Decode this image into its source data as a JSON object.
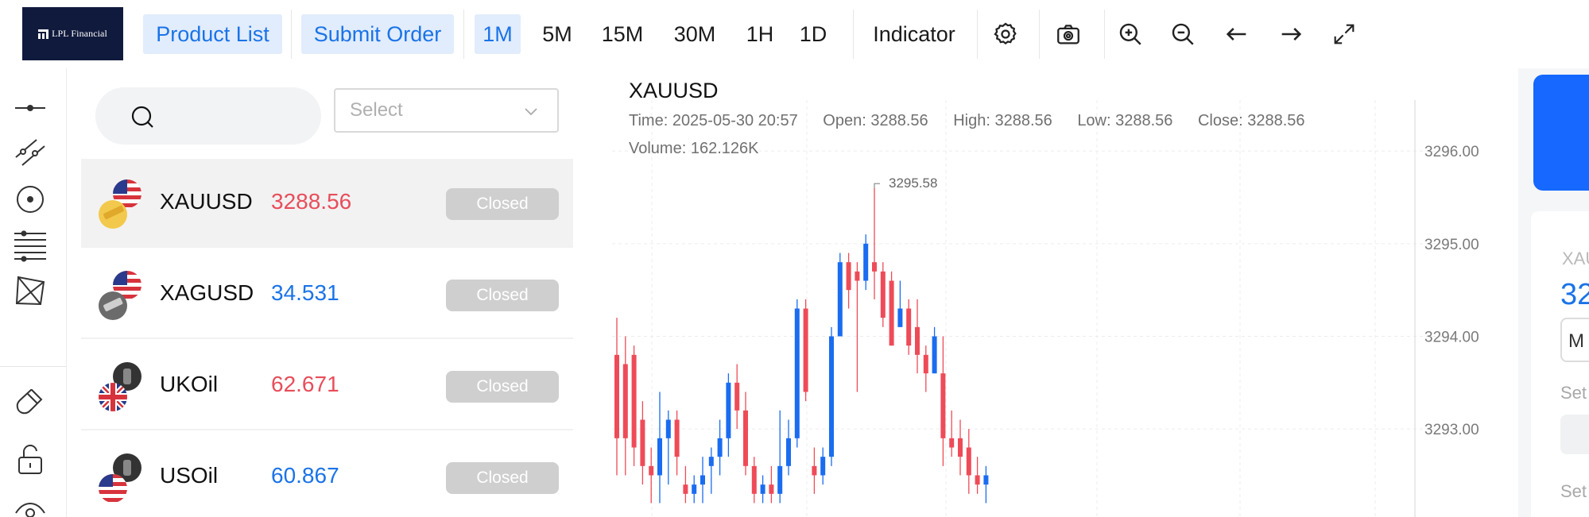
{
  "toolbar": {
    "logo_text": "LPL Financial",
    "product_list_label": "Product List",
    "submit_order_label": "Submit Order",
    "intervals": [
      "1M",
      "5M",
      "15M",
      "30M",
      "1H",
      "1D"
    ],
    "active_interval": "1M",
    "indicator_label": "Indicator",
    "icons": [
      "gear-icon",
      "camera-icon",
      "zoom-in-icon",
      "zoom-out-icon",
      "arrow-left-icon",
      "arrow-right-icon",
      "fullscreen-icon"
    ]
  },
  "drawing_tools": [
    "horizontal-line-icon",
    "parallel-channel-icon",
    "circle-dot-icon",
    "fibonacci-lines-icon",
    "pattern-icon",
    "magnet-icon",
    "unlock-icon",
    "eye-icon"
  ],
  "product_list": {
    "search_placeholder": "",
    "select_placeholder": "Select",
    "items": [
      {
        "symbol": "XAUUSD",
        "price": "3288.56",
        "status": "Closed",
        "trend": "down",
        "active": true
      },
      {
        "symbol": "XAGUSD",
        "price": "34.531",
        "status": "Closed",
        "trend": "up",
        "active": false
      },
      {
        "symbol": "UKOil",
        "price": "62.671",
        "status": "Closed",
        "trend": "down",
        "active": false
      },
      {
        "symbol": "USOil",
        "price": "60.867",
        "status": "Closed",
        "trend": "up",
        "active": false
      }
    ]
  },
  "chart": {
    "symbol": "XAUUSD",
    "time_label": "Time: 2025-05-30 20:57",
    "open_label": "Open: 3288.56",
    "high_label": "High: 3288.56",
    "low_label": "Low: 3288.56",
    "close_label": "Close: 3288.56",
    "volume_label": "Volume: 162.126K",
    "max_marker": "3295.58",
    "colors": {
      "up": "#1a6cf0",
      "down": "#ee4b58",
      "grid": "#ececec"
    }
  },
  "chart_data": {
    "type": "candlestick",
    "title": "XAUUSD",
    "y_ticks": [
      "3296.00",
      "3295.00",
      "3294.00",
      "3293.00"
    ],
    "y_tick_values": [
      3296.0,
      3295.0,
      3294.0,
      3293.0
    ],
    "ylim": [
      3292.05,
      3296.55
    ],
    "max_annotation": {
      "value": 3295.58,
      "label": "3295.58"
    },
    "candles": [
      {
        "o": 3293.8,
        "h": 3294.2,
        "l": 3292.5,
        "c": 3292.9
      },
      {
        "o": 3293.7,
        "h": 3294.0,
        "l": 3292.5,
        "c": 3292.9
      },
      {
        "o": 3293.8,
        "h": 3293.9,
        "l": 3292.6,
        "c": 3292.8
      },
      {
        "o": 3293.1,
        "h": 3293.3,
        "l": 3292.4,
        "c": 3292.6
      },
      {
        "o": 3292.6,
        "h": 3292.8,
        "l": 3292.2,
        "c": 3292.5
      },
      {
        "o": 3292.5,
        "h": 3293.4,
        "l": 3292.2,
        "c": 3292.9
      },
      {
        "o": 3292.9,
        "h": 3293.2,
        "l": 3292.4,
        "c": 3293.1
      },
      {
        "o": 3293.1,
        "h": 3293.2,
        "l": 3292.5,
        "c": 3292.7
      },
      {
        "o": 3292.4,
        "h": 3292.6,
        "l": 3292.2,
        "c": 3292.3
      },
      {
        "o": 3292.3,
        "h": 3292.5,
        "l": 3292.2,
        "c": 3292.4
      },
      {
        "o": 3292.4,
        "h": 3292.7,
        "l": 3292.2,
        "c": 3292.5
      },
      {
        "o": 3292.6,
        "h": 3292.8,
        "l": 3292.3,
        "c": 3292.7
      },
      {
        "o": 3292.7,
        "h": 3293.1,
        "l": 3292.5,
        "c": 3292.9
      },
      {
        "o": 3292.9,
        "h": 3293.6,
        "l": 3292.7,
        "c": 3293.5
      },
      {
        "o": 3293.5,
        "h": 3293.7,
        "l": 3293.0,
        "c": 3293.2
      },
      {
        "o": 3293.2,
        "h": 3293.4,
        "l": 3292.5,
        "c": 3292.6
      },
      {
        "o": 3292.6,
        "h": 3292.7,
        "l": 3292.2,
        "c": 3292.3
      },
      {
        "o": 3292.3,
        "h": 3292.5,
        "l": 3292.2,
        "c": 3292.4
      },
      {
        "o": 3292.4,
        "h": 3292.6,
        "l": 3292.2,
        "c": 3292.3
      },
      {
        "o": 3292.3,
        "h": 3293.2,
        "l": 3292.2,
        "c": 3292.6
      },
      {
        "o": 3292.6,
        "h": 3293.1,
        "l": 3292.5,
        "c": 3292.9
      },
      {
        "o": 3292.9,
        "h": 3294.4,
        "l": 3292.8,
        "c": 3294.3
      },
      {
        "o": 3294.3,
        "h": 3294.4,
        "l": 3293.3,
        "c": 3293.4
      },
      {
        "o": 3292.6,
        "h": 3292.8,
        "l": 3292.3,
        "c": 3292.5
      },
      {
        "o": 3292.5,
        "h": 3292.8,
        "l": 3292.4,
        "c": 3292.7
      },
      {
        "o": 3292.7,
        "h": 3294.1,
        "l": 3292.6,
        "c": 3294.0
      },
      {
        "o": 3294.0,
        "h": 3294.9,
        "l": 3294.0,
        "c": 3294.8
      },
      {
        "o": 3294.8,
        "h": 3294.9,
        "l": 3294.3,
        "c": 3294.5
      },
      {
        "o": 3294.7,
        "h": 3294.8,
        "l": 3293.4,
        "c": 3294.6
      },
      {
        "o": 3294.6,
        "h": 3295.1,
        "l": 3294.5,
        "c": 3295.0
      },
      {
        "o": 3294.8,
        "h": 3295.6,
        "l": 3294.4,
        "c": 3294.7
      },
      {
        "o": 3294.7,
        "h": 3294.8,
        "l": 3294.1,
        "c": 3294.2
      },
      {
        "o": 3294.6,
        "h": 3294.7,
        "l": 3293.9,
        "c": 3293.9
      },
      {
        "o": 3294.1,
        "h": 3294.6,
        "l": 3294.1,
        "c": 3294.3
      },
      {
        "o": 3294.3,
        "h": 3294.4,
        "l": 3293.8,
        "c": 3293.9
      },
      {
        "o": 3294.1,
        "h": 3294.4,
        "l": 3293.6,
        "c": 3293.8
      },
      {
        "o": 3293.8,
        "h": 3293.9,
        "l": 3293.4,
        "c": 3293.6
      },
      {
        "o": 3293.6,
        "h": 3294.1,
        "l": 3293.6,
        "c": 3294.0
      },
      {
        "o": 3293.6,
        "h": 3294.0,
        "l": 3292.6,
        "c": 3292.9
      },
      {
        "o": 3292.9,
        "h": 3293.2,
        "l": 3292.7,
        "c": 3292.8
      },
      {
        "o": 3292.9,
        "h": 3293.1,
        "l": 3292.5,
        "c": 3292.7
      },
      {
        "o": 3292.8,
        "h": 3293.0,
        "l": 3292.3,
        "c": 3292.5
      },
      {
        "o": 3292.5,
        "h": 3292.7,
        "l": 3292.3,
        "c": 3292.4
      },
      {
        "o": 3292.4,
        "h": 3292.6,
        "l": 3292.2,
        "c": 3292.5
      }
    ]
  },
  "order_panel": {
    "symbol_partial": "XAU",
    "price_partial": "32",
    "input_partial": "M",
    "label_1": "Set",
    "label_2": "Set"
  }
}
